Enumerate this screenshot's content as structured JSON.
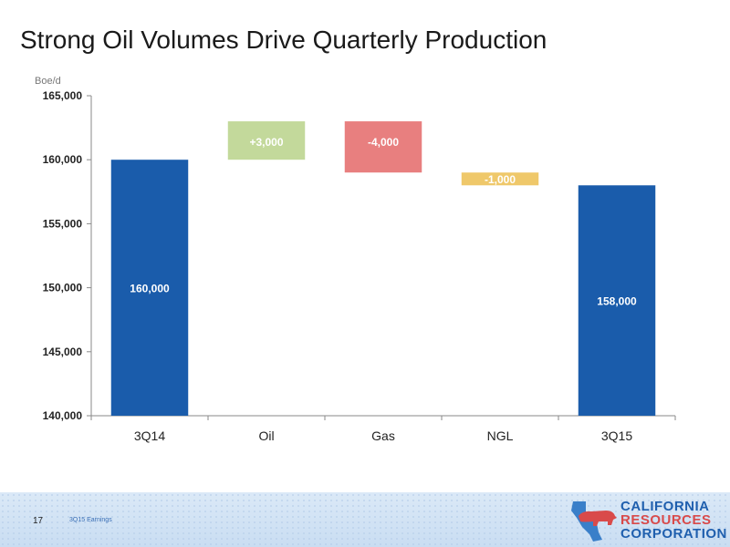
{
  "title": "Strong Oil Volumes Drive Quarterly Production",
  "footer": {
    "page_number": "17",
    "label": "3Q15 Earnings"
  },
  "logo": {
    "line1": "CALIFORNIA",
    "line2": "RESOURCES",
    "line3": "CORPORATION"
  },
  "colors": {
    "total_bar": "#1a5cab",
    "increase": "#c3d99b",
    "decrease": "#e87f7f",
    "ngl": "#efc86a",
    "axis": "#8a8a8a"
  },
  "chart_data": {
    "type": "bar",
    "subtype": "waterfall",
    "ylabel": "Boe/d",
    "ylim": [
      140000,
      165000
    ],
    "yticks": [
      "140,000",
      "145,000",
      "150,000",
      "155,000",
      "160,000",
      "165,000"
    ],
    "ytick_values": [
      140000,
      145000,
      150000,
      155000,
      160000,
      165000
    ],
    "categories": [
      "3Q14",
      "Oil",
      "Gas",
      "NGL",
      "3Q15"
    ],
    "bars": [
      {
        "category": "3Q14",
        "kind": "total",
        "start": 140000,
        "end": 160000,
        "label": "160,000",
        "color": "#1a5cab"
      },
      {
        "category": "Oil",
        "kind": "change",
        "start": 160000,
        "end": 163000,
        "label": "+3,000",
        "color": "#c3d99b"
      },
      {
        "category": "Gas",
        "kind": "change",
        "start": 163000,
        "end": 159000,
        "label": "-4,000",
        "color": "#e87f7f"
      },
      {
        "category": "NGL",
        "kind": "change",
        "start": 159000,
        "end": 158000,
        "label": "-1,000",
        "color": "#efc86a"
      },
      {
        "category": "3Q15",
        "kind": "total",
        "start": 140000,
        "end": 158000,
        "label": "158,000",
        "color": "#1a5cab"
      }
    ],
    "grid": false,
    "legend": "none"
  }
}
